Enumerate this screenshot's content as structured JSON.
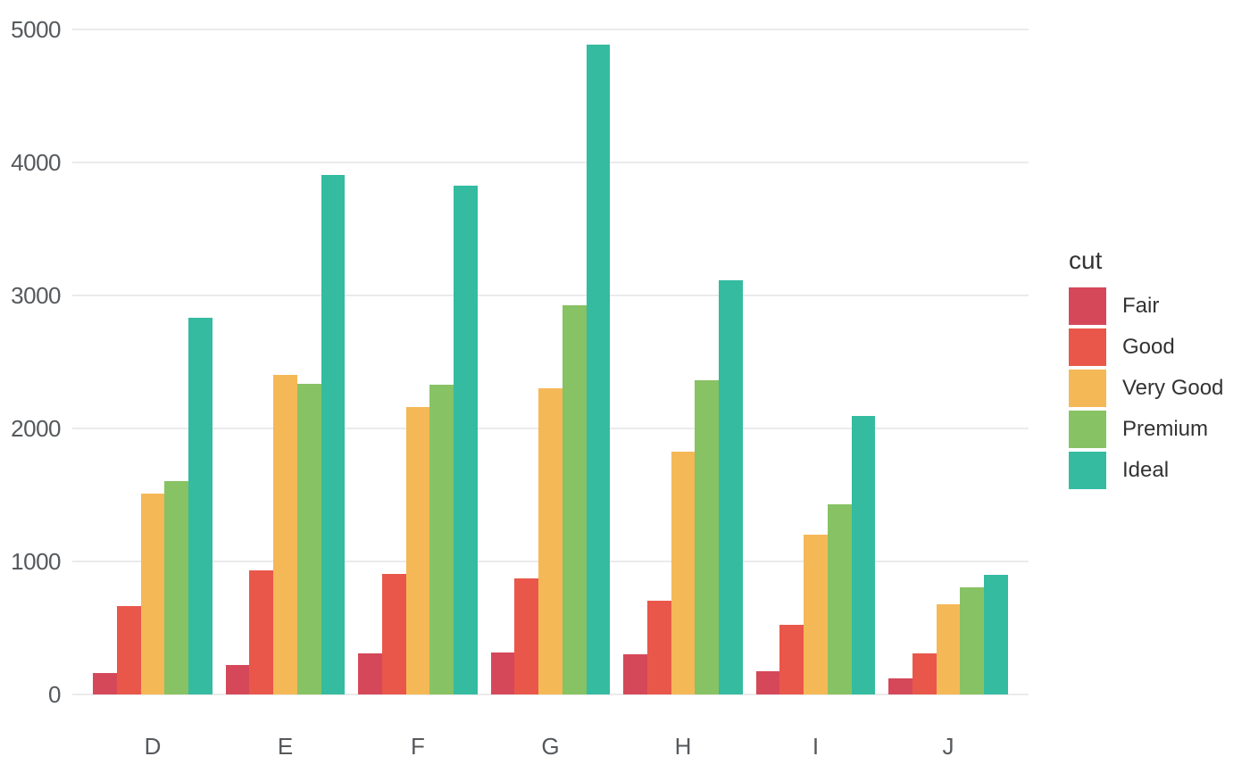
{
  "chart_data": {
    "type": "bar",
    "title": "",
    "xlabel": "",
    "ylabel": "",
    "categories": [
      "D",
      "E",
      "F",
      "G",
      "H",
      "I",
      "J"
    ],
    "series": [
      {
        "name": "Fair",
        "color": "#d5485a",
        "values": [
          163,
          224,
          312,
          314,
          303,
          175,
          119
        ]
      },
      {
        "name": "Good",
        "color": "#e9574a",
        "values": [
          662,
          933,
          909,
          871,
          702,
          522,
          307
        ]
      },
      {
        "name": "Very Good",
        "color": "#f5b857",
        "values": [
          1513,
          2400,
          2164,
          2299,
          1824,
          1204,
          678
        ]
      },
      {
        "name": "Premium",
        "color": "#87c264",
        "values": [
          1603,
          2337,
          2331,
          2924,
          2360,
          1428,
          808
        ]
      },
      {
        "name": "Ideal",
        "color": "#34bba0",
        "values": [
          2834,
          3903,
          3826,
          4884,
          3115,
          2093,
          896
        ]
      }
    ],
    "ylim": [
      0,
      5000
    ],
    "yticks": [
      0,
      1000,
      2000,
      3000,
      4000,
      5000
    ],
    "grid": true,
    "legend_title": "cut",
    "legend_position": "right"
  },
  "style": {
    "background": "#ffffff",
    "gridline_color": "#ebebeb",
    "axis_text_color": "#56595c",
    "legend_text_color": "#333333"
  }
}
